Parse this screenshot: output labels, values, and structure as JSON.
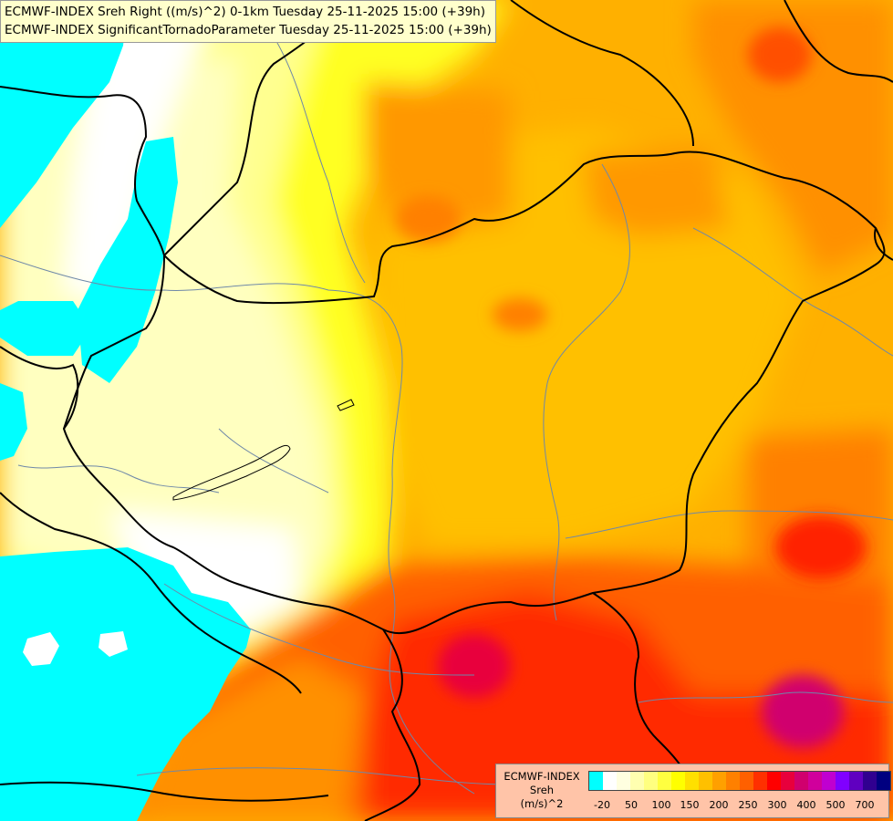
{
  "header": {
    "line1": "ECMWF-INDEX Sreh Right ((m/s)^2) 0-1km Tuesday 25-11-2025 15:00 (+39h)",
    "line2": "ECMWF-INDEX SignificantTornadoParameter Tuesday 25-11-2025 15:00 (+39h)"
  },
  "legend": {
    "title1": "ECMWF-INDEX",
    "title2": "Sreh",
    "title3": "(m/s)^2",
    "colors": [
      "#00ffff",
      "#ffffff",
      "#ffffe0",
      "#ffffb0",
      "#ffff80",
      "#ffff40",
      "#ffff00",
      "#ffe000",
      "#ffc000",
      "#ffa000",
      "#ff8000",
      "#ff6000",
      "#ff3000",
      "#ff0000",
      "#e8003c",
      "#d0006e",
      "#d0009c",
      "#c000d0",
      "#8000ff",
      "#6000c0",
      "#300090",
      "#000080"
    ],
    "ticks": [
      "-20",
      "50",
      "100",
      "150",
      "200",
      "250",
      "300",
      "400",
      "500",
      "700"
    ]
  },
  "map": {
    "colors": {
      "cyan": "#00ffff",
      "white": "#ffffff",
      "pale_yellow": "#ffffc0",
      "light_yellow": "#ffff80",
      "yellow": "#ffff00",
      "gold": "#ffe000",
      "orange_light": "#ffc000",
      "orange": "#ffa000",
      "orange_dark": "#ff8000",
      "red_orange": "#ff5000",
      "red": "#ff2000",
      "magenta_red": "#e8003c",
      "border": "#000000",
      "river": "#6f88a8"
    }
  }
}
